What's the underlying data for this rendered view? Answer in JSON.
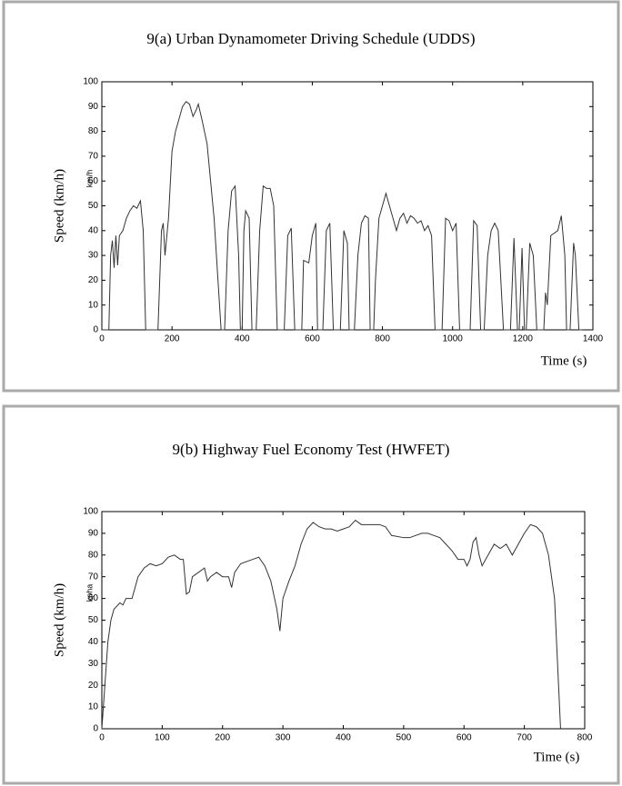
{
  "chart_data": [
    {
      "type": "line",
      "title": "9(a) Urban Dynamometer Driving Schedule (UDDS)",
      "x_label": "Time (s)",
      "y_label": "Speed (km/h)",
      "unit_label": "km/h",
      "xlim": [
        0,
        1400
      ],
      "xticks": [
        0,
        200,
        400,
        600,
        800,
        1000,
        1200,
        1400
      ],
      "ylim": [
        0,
        100
      ],
      "yticks": [
        0,
        10,
        20,
        30,
        40,
        50,
        60,
        70,
        80,
        90,
        100
      ],
      "x": [
        0,
        20,
        25,
        30,
        35,
        40,
        45,
        50,
        60,
        70,
        80,
        90,
        100,
        110,
        118,
        125,
        160,
        170,
        175,
        180,
        190,
        200,
        210,
        220,
        230,
        240,
        250,
        260,
        270,
        275,
        285,
        300,
        320,
        340,
        350,
        360,
        370,
        380,
        390,
        395,
        400,
        405,
        410,
        420,
        428,
        440,
        450,
        460,
        470,
        480,
        490,
        500,
        520,
        530,
        540,
        550,
        570,
        575,
        590,
        600,
        610,
        615,
        630,
        640,
        650,
        660,
        680,
        690,
        700,
        705,
        720,
        730,
        740,
        750,
        760,
        765,
        775,
        780,
        790,
        800,
        810,
        820,
        830,
        840,
        850,
        860,
        870,
        880,
        890,
        900,
        910,
        920,
        930,
        940,
        950,
        970,
        980,
        990,
        1000,
        1010,
        1020,
        1050,
        1060,
        1070,
        1080,
        1090,
        1100,
        1110,
        1120,
        1130,
        1145,
        1165,
        1175,
        1185,
        1190,
        1198,
        1205,
        1210,
        1220,
        1230,
        1240,
        1260,
        1265,
        1270,
        1280,
        1300,
        1310,
        1320,
        1325,
        1335,
        1345,
        1350,
        1360,
        1370
      ],
      "series": [
        {
          "color": "#333333",
          "values": [
            0,
            0,
            30,
            36,
            25,
            38,
            26,
            38,
            40,
            45,
            48,
            50,
            49,
            52,
            40,
            0,
            0,
            40,
            43,
            30,
            45,
            72,
            80,
            85,
            90,
            92,
            91,
            86,
            89,
            91,
            85,
            75,
            45,
            0,
            0,
            40,
            56,
            58,
            30,
            0,
            0,
            40,
            48,
            45,
            0,
            0,
            40,
            58,
            57,
            57,
            50,
            0,
            0,
            38,
            41,
            0,
            0,
            28,
            27,
            38,
            43,
            0,
            0,
            40,
            43,
            0,
            0,
            40,
            35,
            0,
            0,
            30,
            43,
            46,
            45,
            0,
            0,
            20,
            45,
            50,
            55,
            50,
            45,
            40,
            45,
            47,
            43,
            46,
            45,
            43,
            44,
            40,
            42,
            38,
            0,
            0,
            45,
            44,
            40,
            43,
            0,
            0,
            44,
            42,
            0,
            0,
            30,
            40,
            43,
            40,
            0,
            0,
            37,
            0,
            0,
            33,
            0,
            0,
            35,
            30,
            0,
            0,
            15,
            10,
            38,
            40,
            46,
            30,
            0,
            0,
            35,
            30,
            0,
            0
          ]
        }
      ]
    },
    {
      "type": "line",
      "title": "9(b) Highway Fuel Economy Test (HWFET)",
      "x_label": "Time (s)",
      "y_label": "Speed (km/h)",
      "unit_label": "kpha",
      "xlim": [
        0,
        800
      ],
      "xticks": [
        0,
        100,
        200,
        300,
        400,
        500,
        600,
        700,
        800
      ],
      "ylim": [
        0,
        100
      ],
      "yticks": [
        0,
        10,
        20,
        30,
        40,
        50,
        60,
        70,
        80,
        90,
        100
      ],
      "x": [
        0,
        5,
        10,
        15,
        20,
        30,
        35,
        40,
        50,
        60,
        70,
        80,
        90,
        100,
        110,
        120,
        130,
        135,
        140,
        145,
        150,
        160,
        170,
        175,
        180,
        190,
        200,
        210,
        215,
        220,
        230,
        250,
        260,
        270,
        280,
        290,
        295,
        300,
        310,
        320,
        330,
        340,
        350,
        360,
        370,
        380,
        390,
        400,
        410,
        420,
        430,
        440,
        460,
        470,
        480,
        500,
        510,
        520,
        530,
        540,
        550,
        560,
        570,
        580,
        590,
        600,
        605,
        610,
        615,
        620,
        625,
        630,
        640,
        650,
        660,
        670,
        680,
        690,
        700,
        710,
        720,
        730,
        740,
        750,
        755,
        760
      ],
      "series": [
        {
          "color": "#333333",
          "values": [
            0,
            20,
            40,
            50,
            55,
            58,
            57,
            60,
            60,
            70,
            74,
            76,
            75,
            76,
            79,
            80,
            78,
            78,
            62,
            63,
            70,
            72,
            74,
            68,
            70,
            72,
            70,
            70,
            65,
            72,
            76,
            78,
            79,
            75,
            68,
            55,
            45,
            60,
            68,
            75,
            85,
            92,
            95,
            93,
            92,
            92,
            91,
            92,
            93,
            96,
            94,
            94,
            94,
            93,
            89,
            88,
            88,
            89,
            90,
            90,
            89,
            88,
            85,
            82,
            78,
            78,
            75,
            78,
            86,
            88,
            80,
            75,
            80,
            85,
            83,
            85,
            80,
            85,
            90,
            94,
            93,
            90,
            80,
            60,
            30,
            0
          ]
        }
      ]
    }
  ]
}
